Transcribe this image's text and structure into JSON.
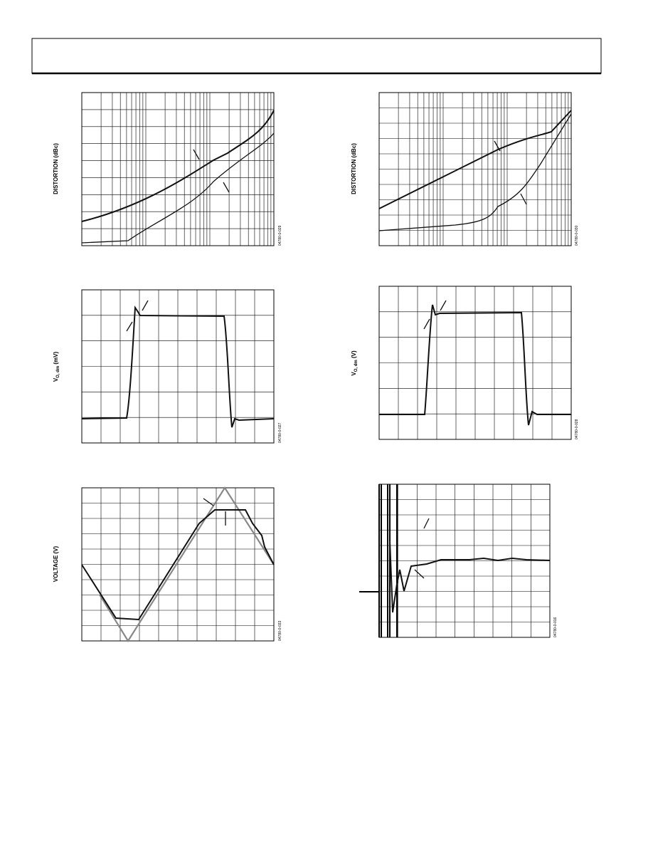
{
  "figures": [
    {
      "y_label": "DISTORTION (dBc)",
      "code": "04780-0-029"
    },
    {
      "y_label": "DISTORTION (dBc)",
      "code": "04780-0-030"
    },
    {
      "y_label": {
        "main": "V",
        "sub": "O, dm",
        "unit": " (mV)"
      },
      "code": "04780-0-027"
    },
    {
      "y_label": {
        "main": "V",
        "sub": "O, dm",
        "unit": " (V)"
      },
      "code": "04780-0-028"
    },
    {
      "y_label": "VOLTAGE (V)",
      "code": "04780-0-033"
    },
    {
      "code": "04780-0-016"
    }
  ]
}
